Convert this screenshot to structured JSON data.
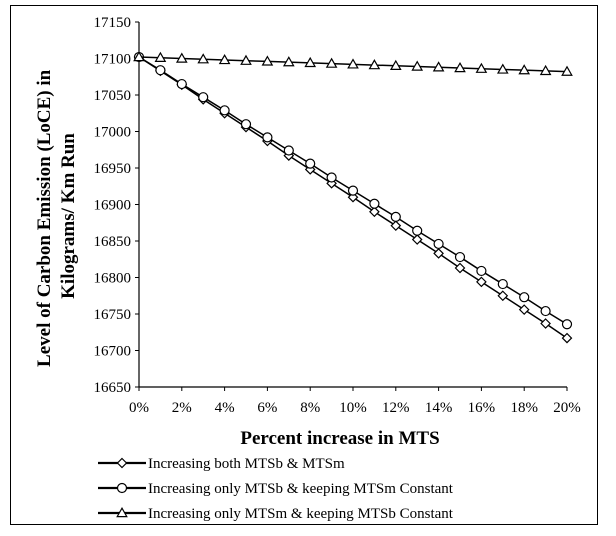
{
  "chart_data": {
    "type": "line",
    "xlabel": "Percent increase in MTS",
    "ylabel": "Level of Carbon  Emission (LoCE) in Kilograms/ Km Run",
    "ylabel_lines": [
      "Level of Carbon  Emission (LoCE) in",
      "Kilograms/ Km Run"
    ],
    "ylim": [
      16650,
      17150
    ],
    "yticks": [
      16650,
      16700,
      16750,
      16800,
      16850,
      16900,
      16950,
      17000,
      17050,
      17100,
      17150
    ],
    "x": [
      0,
      1,
      2,
      3,
      4,
      5,
      6,
      7,
      8,
      9,
      10,
      11,
      12,
      13,
      14,
      15,
      16,
      17,
      18,
      19,
      20
    ],
    "xticks": [
      0,
      2,
      4,
      6,
      8,
      10,
      12,
      14,
      16,
      18,
      20
    ],
    "xtick_labels": [
      "0%",
      "2%",
      "4%",
      "6%",
      "8%",
      "10%",
      "12%",
      "14%",
      "16%",
      "18%",
      "20%"
    ],
    "grid": false,
    "legend_position": "bottom",
    "series": [
      {
        "name": "Increasing both MTSb & MTSm",
        "marker": "diamond",
        "values": [
          17102,
          17083,
          17064,
          17044,
          17025,
          17006,
          16987,
          16967,
          16948,
          16929,
          16910,
          16890,
          16871,
          16852,
          16833,
          16813,
          16794,
          16775,
          16756,
          16737,
          16717
        ]
      },
      {
        "name": "Increasing only  MTSb & keeping  MTSm Constant",
        "marker": "circle",
        "values": [
          17102,
          17084,
          17065,
          17047,
          17029,
          17010,
          16992,
          16974,
          16956,
          16937,
          16919,
          16901,
          16883,
          16864,
          16846,
          16828,
          16809,
          16791,
          16773,
          16754,
          16736
        ]
      },
      {
        "name": "Increasing only  MTSm & keeping  MTSb Constant",
        "marker": "triangle",
        "values": [
          17102,
          17101,
          17100,
          17099,
          17098,
          17097,
          17096,
          17095,
          17094,
          17093,
          17092,
          17091,
          17090,
          17089,
          17088,
          17087,
          17086,
          17085,
          17084,
          17083,
          17082
        ]
      }
    ]
  }
}
